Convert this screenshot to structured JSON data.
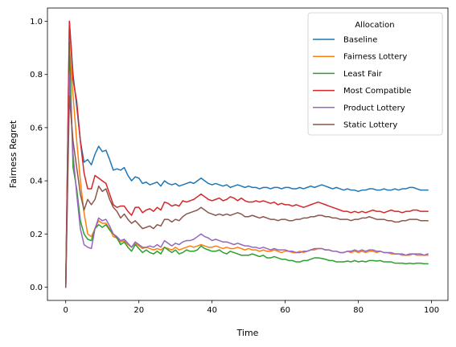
{
  "chart_data": {
    "type": "line",
    "title": "",
    "xlabel": "Time",
    "ylabel": "Fairness Regret",
    "xlim": [
      -5,
      104.5
    ],
    "ylim": [
      -0.05,
      1.05
    ],
    "xticks": [
      0,
      20,
      40,
      60,
      80,
      100
    ],
    "yticks": [
      0.0,
      0.2,
      0.4,
      0.6,
      0.8,
      1.0
    ],
    "xtick_labels": [
      "0",
      "20",
      "40",
      "60",
      "80",
      "100"
    ],
    "ytick_labels": [
      "0.0",
      "0.2",
      "0.4",
      "0.6",
      "0.8",
      "1.0"
    ],
    "grid": false,
    "legend": {
      "title": "Allocation",
      "position": "top-right"
    },
    "series": [
      {
        "name": "Baseline",
        "color": "#1f77b4",
        "values": [
          0.0,
          1.0,
          0.8,
          0.68,
          0.55,
          0.47,
          0.48,
          0.46,
          0.5,
          0.53,
          0.51,
          0.515,
          0.48,
          0.44,
          0.445,
          0.44,
          0.45,
          0.42,
          0.4,
          0.415,
          0.41,
          0.39,
          0.395,
          0.385,
          0.39,
          0.395,
          0.38,
          0.4,
          0.39,
          0.385,
          0.39,
          0.38,
          0.385,
          0.39,
          0.395,
          0.39,
          0.4,
          0.41,
          0.4,
          0.39,
          0.385,
          0.39,
          0.385,
          0.38,
          0.385,
          0.375,
          0.38,
          0.385,
          0.38,
          0.375,
          0.38,
          0.375,
          0.375,
          0.37,
          0.375,
          0.375,
          0.37,
          0.375,
          0.375,
          0.37,
          0.375,
          0.375,
          0.37,
          0.37,
          0.375,
          0.37,
          0.375,
          0.38,
          0.375,
          0.38,
          0.385,
          0.38,
          0.375,
          0.37,
          0.375,
          0.37,
          0.365,
          0.37,
          0.365,
          0.365,
          0.36,
          0.365,
          0.365,
          0.37,
          0.37,
          0.365,
          0.365,
          0.37,
          0.365,
          0.365,
          0.37,
          0.365,
          0.37,
          0.37,
          0.375,
          0.375,
          0.37,
          0.365,
          0.365,
          0.365
        ]
      },
      {
        "name": "Fairness Lottery",
        "color": "#ff7f0e",
        "values": [
          0.0,
          0.9,
          0.72,
          0.55,
          0.4,
          0.28,
          0.2,
          0.19,
          0.22,
          0.25,
          0.24,
          0.24,
          0.22,
          0.19,
          0.185,
          0.17,
          0.175,
          0.16,
          0.15,
          0.165,
          0.155,
          0.145,
          0.15,
          0.145,
          0.14,
          0.145,
          0.14,
          0.15,
          0.145,
          0.14,
          0.15,
          0.14,
          0.145,
          0.15,
          0.155,
          0.15,
          0.155,
          0.16,
          0.155,
          0.15,
          0.15,
          0.155,
          0.15,
          0.145,
          0.15,
          0.145,
          0.145,
          0.15,
          0.145,
          0.14,
          0.145,
          0.14,
          0.14,
          0.135,
          0.14,
          0.135,
          0.135,
          0.14,
          0.135,
          0.13,
          0.135,
          0.135,
          0.13,
          0.13,
          0.135,
          0.13,
          0.135,
          0.14,
          0.14,
          0.145,
          0.145,
          0.14,
          0.14,
          0.135,
          0.135,
          0.13,
          0.13,
          0.135,
          0.13,
          0.135,
          0.13,
          0.135,
          0.13,
          0.135,
          0.135,
          0.13,
          0.135,
          0.13,
          0.13,
          0.125,
          0.125,
          0.125,
          0.12,
          0.12,
          0.12,
          0.125,
          0.12,
          0.12,
          0.12,
          0.12
        ]
      },
      {
        "name": "Least Fair",
        "color": "#2ca02c",
        "values": [
          0.0,
          0.92,
          0.45,
          0.37,
          0.25,
          0.2,
          0.18,
          0.175,
          0.22,
          0.235,
          0.225,
          0.235,
          0.215,
          0.2,
          0.185,
          0.16,
          0.17,
          0.15,
          0.135,
          0.16,
          0.145,
          0.13,
          0.14,
          0.13,
          0.125,
          0.135,
          0.125,
          0.15,
          0.14,
          0.13,
          0.14,
          0.125,
          0.13,
          0.14,
          0.135,
          0.135,
          0.14,
          0.155,
          0.145,
          0.14,
          0.135,
          0.135,
          0.14,
          0.13,
          0.125,
          0.135,
          0.13,
          0.125,
          0.12,
          0.12,
          0.12,
          0.125,
          0.12,
          0.115,
          0.12,
          0.11,
          0.11,
          0.115,
          0.11,
          0.105,
          0.105,
          0.1,
          0.1,
          0.095,
          0.095,
          0.1,
          0.1,
          0.105,
          0.11,
          0.11,
          0.108,
          0.105,
          0.1,
          0.1,
          0.095,
          0.095,
          0.095,
          0.098,
          0.095,
          0.1,
          0.095,
          0.098,
          0.095,
          0.1,
          0.1,
          0.098,
          0.1,
          0.095,
          0.095,
          0.095,
          0.09,
          0.09,
          0.09,
          0.088,
          0.09,
          0.088,
          0.09,
          0.09,
          0.088,
          0.088
        ]
      },
      {
        "name": "Most Compatible",
        "color": "#d62728",
        "values": [
          0.0,
          1.0,
          0.78,
          0.7,
          0.55,
          0.43,
          0.37,
          0.37,
          0.42,
          0.41,
          0.4,
          0.39,
          0.35,
          0.31,
          0.3,
          0.305,
          0.305,
          0.285,
          0.27,
          0.3,
          0.3,
          0.28,
          0.29,
          0.295,
          0.285,
          0.3,
          0.29,
          0.32,
          0.315,
          0.305,
          0.31,
          0.305,
          0.325,
          0.32,
          0.325,
          0.33,
          0.34,
          0.35,
          0.34,
          0.33,
          0.325,
          0.33,
          0.335,
          0.325,
          0.33,
          0.34,
          0.335,
          0.325,
          0.335,
          0.325,
          0.32,
          0.32,
          0.325,
          0.32,
          0.325,
          0.32,
          0.315,
          0.32,
          0.31,
          0.315,
          0.31,
          0.31,
          0.305,
          0.31,
          0.305,
          0.3,
          0.305,
          0.31,
          0.315,
          0.32,
          0.315,
          0.31,
          0.305,
          0.3,
          0.295,
          0.29,
          0.285,
          0.285,
          0.28,
          0.285,
          0.28,
          0.285,
          0.28,
          0.285,
          0.29,
          0.285,
          0.285,
          0.28,
          0.285,
          0.29,
          0.285,
          0.285,
          0.28,
          0.285,
          0.285,
          0.29,
          0.29,
          0.285,
          0.285,
          0.285
        ]
      },
      {
        "name": "Product Lottery",
        "color": "#9467bd",
        "values": [
          0.0,
          0.8,
          0.5,
          0.35,
          0.22,
          0.16,
          0.15,
          0.145,
          0.22,
          0.26,
          0.25,
          0.255,
          0.23,
          0.2,
          0.19,
          0.175,
          0.18,
          0.165,
          0.15,
          0.17,
          0.16,
          0.15,
          0.15,
          0.155,
          0.15,
          0.16,
          0.15,
          0.175,
          0.165,
          0.155,
          0.165,
          0.16,
          0.17,
          0.175,
          0.175,
          0.18,
          0.19,
          0.2,
          0.19,
          0.185,
          0.175,
          0.18,
          0.175,
          0.17,
          0.17,
          0.165,
          0.16,
          0.165,
          0.16,
          0.155,
          0.155,
          0.15,
          0.15,
          0.145,
          0.15,
          0.145,
          0.14,
          0.145,
          0.14,
          0.14,
          0.14,
          0.135,
          0.135,
          0.13,
          0.13,
          0.135,
          0.135,
          0.14,
          0.145,
          0.145,
          0.145,
          0.14,
          0.14,
          0.135,
          0.135,
          0.13,
          0.13,
          0.135,
          0.135,
          0.14,
          0.135,
          0.14,
          0.135,
          0.14,
          0.14,
          0.135,
          0.135,
          0.13,
          0.13,
          0.13,
          0.125,
          0.125,
          0.125,
          0.12,
          0.125,
          0.125,
          0.125,
          0.125,
          0.12,
          0.125
        ]
      },
      {
        "name": "Static Lottery",
        "color": "#8c564b",
        "values": [
          0.0,
          0.72,
          0.55,
          0.45,
          0.35,
          0.29,
          0.33,
          0.31,
          0.33,
          0.38,
          0.36,
          0.37,
          0.33,
          0.3,
          0.285,
          0.26,
          0.275,
          0.255,
          0.24,
          0.25,
          0.235,
          0.22,
          0.225,
          0.23,
          0.22,
          0.235,
          0.23,
          0.255,
          0.255,
          0.245,
          0.255,
          0.25,
          0.265,
          0.275,
          0.28,
          0.285,
          0.29,
          0.3,
          0.29,
          0.28,
          0.275,
          0.27,
          0.275,
          0.27,
          0.275,
          0.27,
          0.275,
          0.28,
          0.275,
          0.265,
          0.265,
          0.27,
          0.265,
          0.26,
          0.265,
          0.26,
          0.255,
          0.255,
          0.25,
          0.255,
          0.255,
          0.25,
          0.25,
          0.255,
          0.255,
          0.26,
          0.26,
          0.265,
          0.265,
          0.27,
          0.27,
          0.265,
          0.265,
          0.26,
          0.26,
          0.255,
          0.255,
          0.255,
          0.25,
          0.255,
          0.255,
          0.26,
          0.26,
          0.265,
          0.26,
          0.255,
          0.255,
          0.255,
          0.25,
          0.25,
          0.245,
          0.245,
          0.25,
          0.25,
          0.255,
          0.255,
          0.255,
          0.25,
          0.25,
          0.25
        ]
      }
    ]
  }
}
